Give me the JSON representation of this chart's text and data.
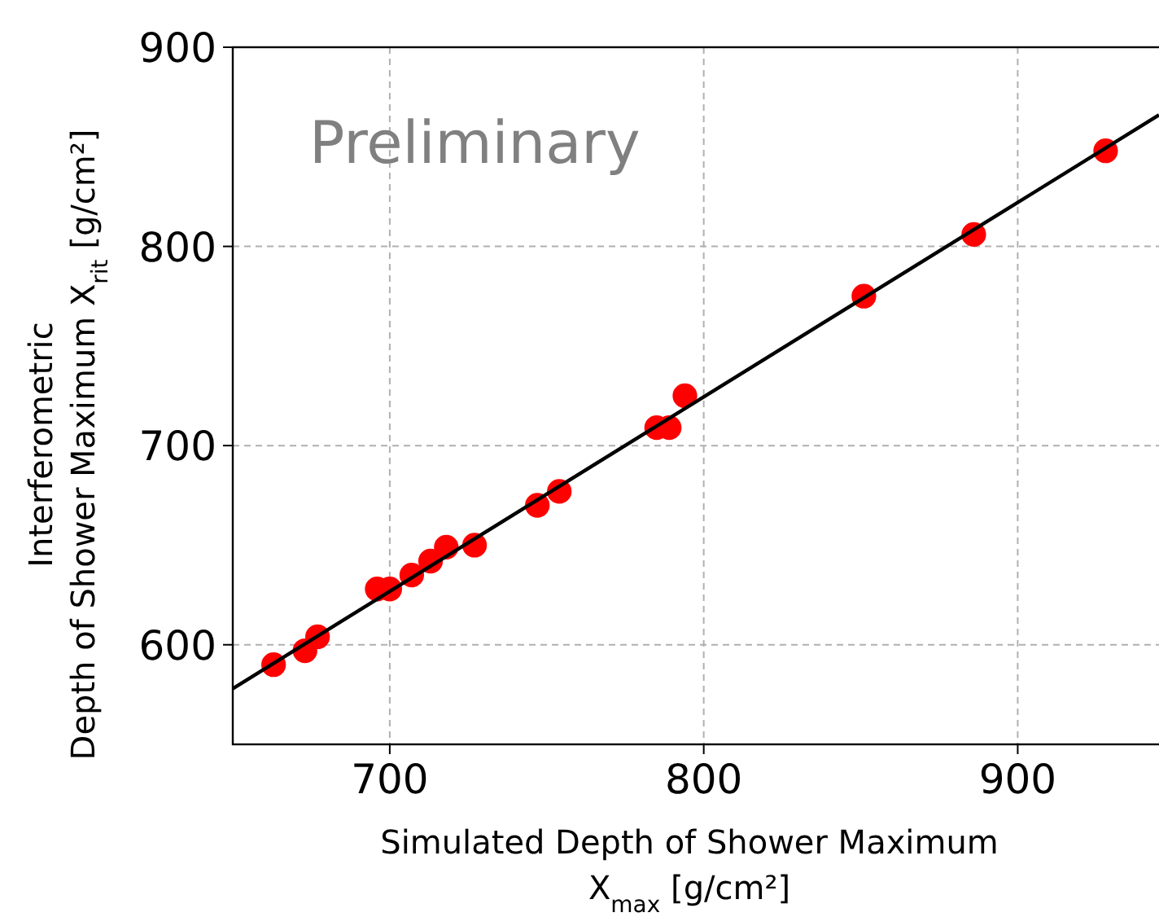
{
  "chart_data": {
    "type": "scatter",
    "xlabel": "Simulated Depth of Shower Maximum\nX$_{max}$ [g/cm²]",
    "ylabel": "Interferometric\nDepth of Shower Maximum  X$_{rit}$ [g/cm²]",
    "annotations": [
      "Preliminary"
    ],
    "xlim": [
      650,
      945
    ],
    "ylim": [
      550,
      900
    ],
    "xticks": [
      700,
      800,
      900
    ],
    "yticks": [
      600,
      700,
      800,
      900
    ],
    "grid": true,
    "series": [
      {
        "marker": "circle",
        "color": "#ff0000",
        "x": [
          663,
          673,
          677,
          696,
          700,
          707,
          713,
          718,
          727,
          747,
          754,
          785,
          789,
          794,
          851,
          886,
          928
        ],
        "values": [
          590,
          597,
          604,
          628,
          628,
          635,
          642,
          649,
          650,
          670,
          677,
          709,
          709,
          725,
          775,
          806,
          848
        ]
      },
      {
        "type": "line",
        "color": "#000000",
        "x": [
          650,
          945
        ],
        "values": [
          578,
          866
        ]
      }
    ]
  }
}
